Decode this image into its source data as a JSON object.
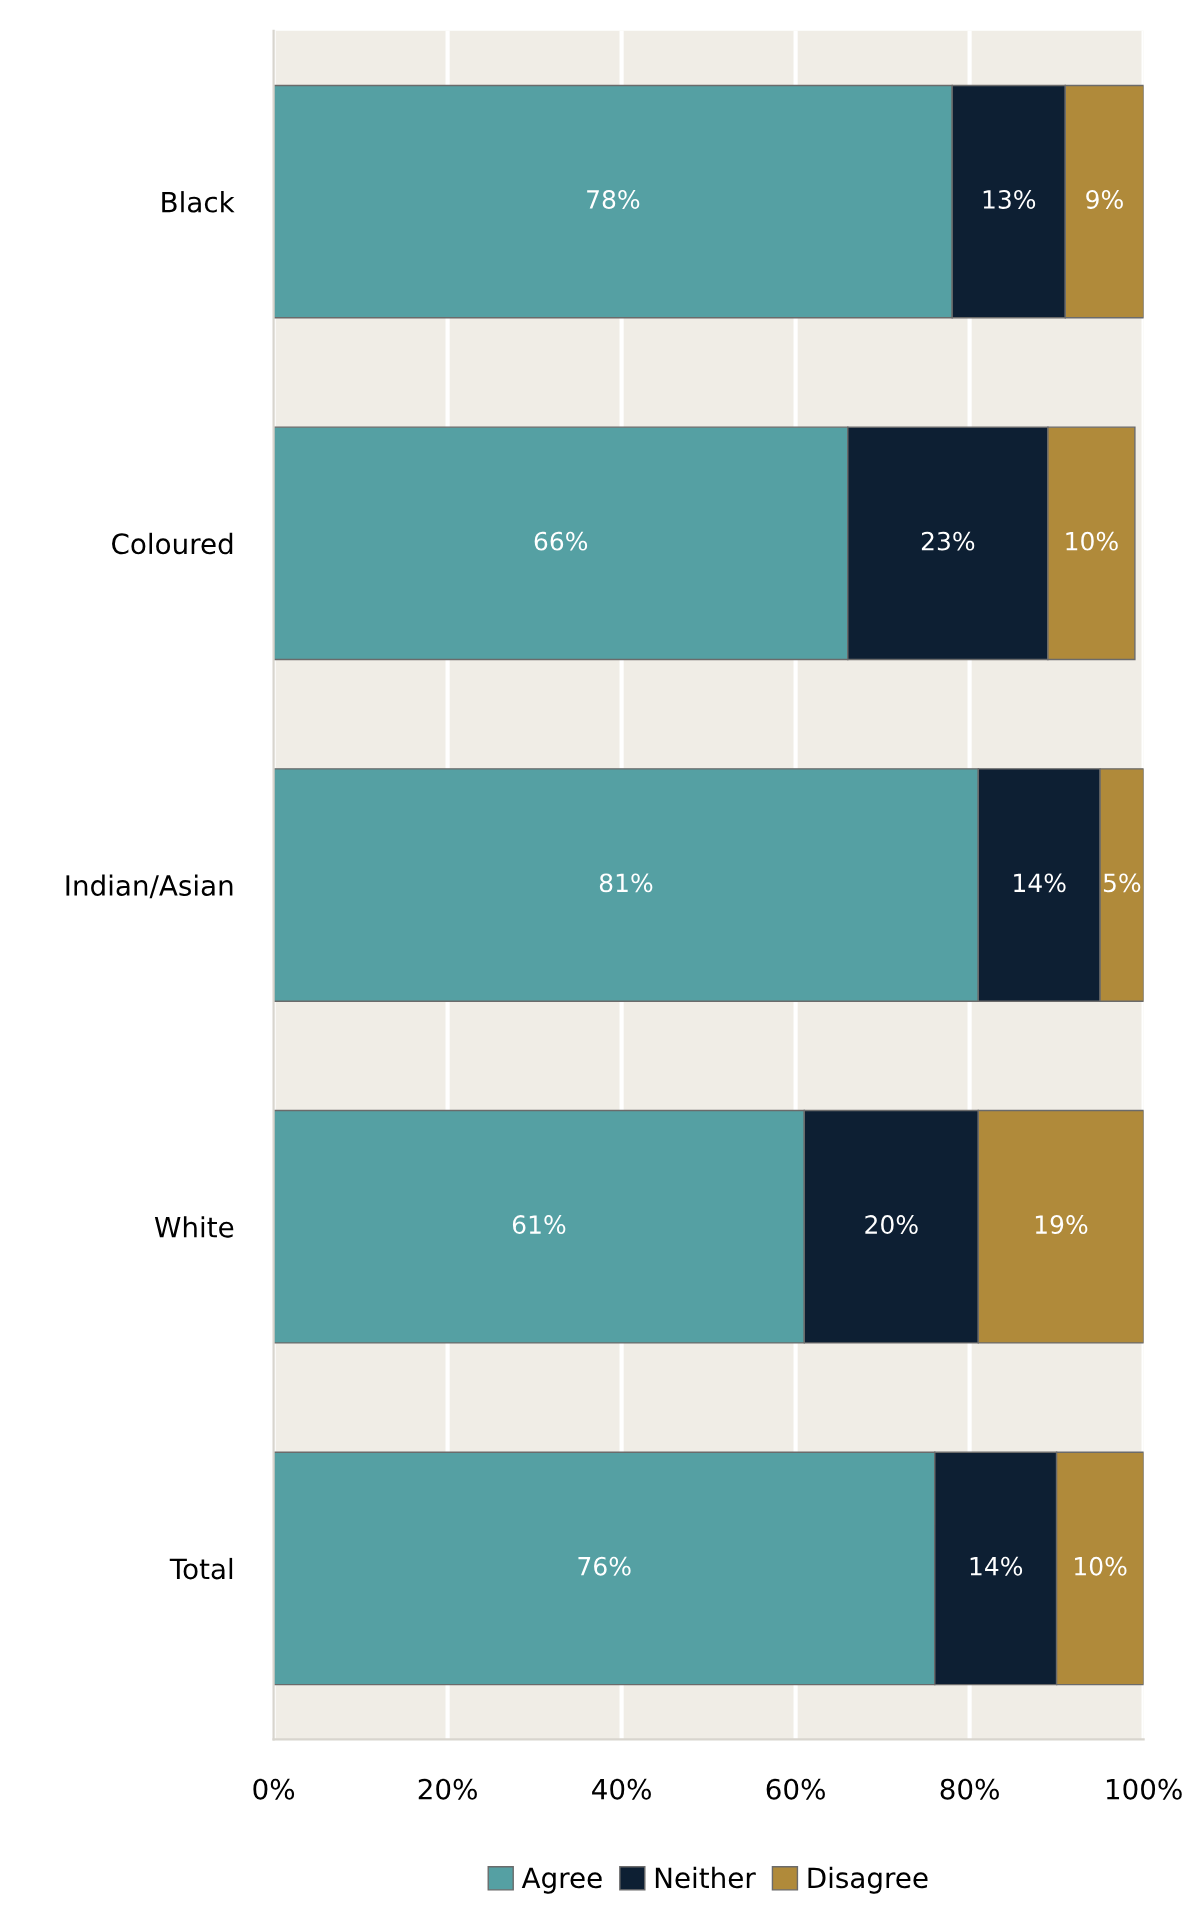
{
  "chart_data": {
    "type": "bar",
    "orientation": "horizontal",
    "stacked": true,
    "categories": [
      "Black",
      "Coloured",
      "Indian/Asian",
      "White",
      "Total"
    ],
    "series": [
      {
        "name": "Agree",
        "color": "#55a0a3",
        "values": [
          78,
          66,
          81,
          61,
          76
        ],
        "value_labels": [
          "78%",
          "66%",
          "81%",
          "61%",
          "76%"
        ]
      },
      {
        "name": "Neither",
        "color": "#0d1f33",
        "values": [
          13,
          23,
          14,
          20,
          14
        ],
        "value_labels": [
          "13%",
          "23%",
          "14%",
          "20%",
          "14%"
        ]
      },
      {
        "name": "Disagree",
        "color": "#b08a3a",
        "values": [
          9,
          10,
          5,
          19,
          10
        ],
        "value_labels": [
          "9%",
          "10%",
          "5%",
          "19%",
          "10%"
        ]
      }
    ],
    "xlim": [
      0,
      100
    ],
    "xticks": [
      {
        "value": 0,
        "label": "0%"
      },
      {
        "value": 20,
        "label": "20%"
      },
      {
        "value": 40,
        "label": "40%"
      },
      {
        "value": 60,
        "label": "60%"
      },
      {
        "value": 80,
        "label": "80%"
      },
      {
        "value": 100,
        "label": "100%"
      }
    ],
    "grid": "x",
    "legend": "bottom"
  }
}
